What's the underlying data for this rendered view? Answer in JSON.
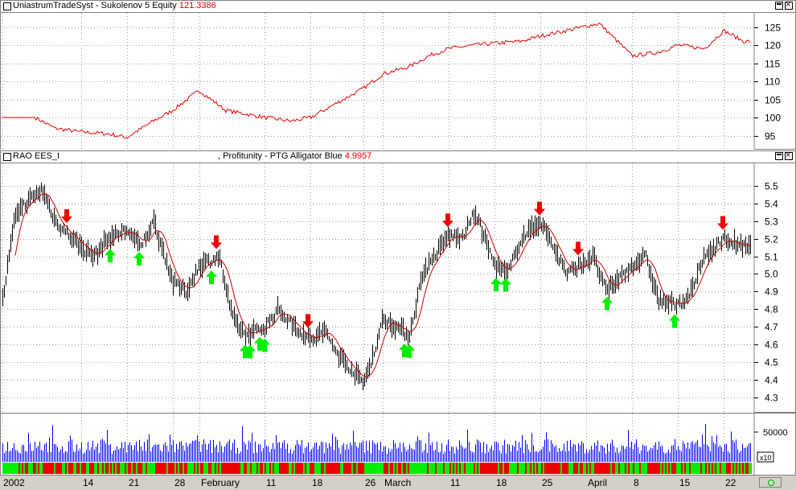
{
  "equity_panel": {
    "title": "UniastrumTradeSyst - Sukolenov 5 Equity",
    "value_label": "121.3386"
  },
  "price_panel": {
    "title_left": "RAO EES_I",
    "title_right": ", Profitunity - PTG Alligator Blue",
    "value_label": "4.9957"
  },
  "volume_panel": {
    "multiplier": "x10"
  },
  "colors": {
    "equity_line": "#e00000",
    "price_bars": "#000000",
    "alligator_line": "#cc0000",
    "buy_arrow": "#00ee00",
    "sell_arrow": "#ee0000",
    "volume_bars": "#0000ff",
    "up_strip": "#00ee00",
    "down_strip": "#ee0000"
  },
  "chart_data": [
    {
      "type": "line",
      "name": "equity",
      "yticks": [
        95,
        100,
        105,
        110,
        115,
        120,
        125
      ],
      "ylim": [
        92,
        128
      ],
      "x": [
        "2002-01-02",
        "2002-01-07",
        "2002-01-10",
        "2002-01-14",
        "2002-01-18",
        "2002-01-21",
        "2002-01-25",
        "2002-01-28",
        "2002-02-01",
        "2002-02-05",
        "2002-02-08",
        "2002-02-11",
        "2002-02-15",
        "2002-02-18",
        "2002-02-22",
        "2002-02-26",
        "2002-03-01",
        "2002-03-05",
        "2002-03-08",
        "2002-03-11",
        "2002-03-15",
        "2002-03-18",
        "2002-03-22",
        "2002-03-25",
        "2002-03-29",
        "2002-04-03",
        "2002-04-08",
        "2002-04-12",
        "2002-04-15",
        "2002-04-19",
        "2002-04-22",
        "2002-04-25"
      ],
      "values": [
        100,
        100,
        97,
        96,
        95.5,
        94.5,
        99,
        102,
        107.5,
        102,
        101,
        100,
        99,
        100,
        104,
        108,
        112,
        114,
        117,
        119,
        120,
        120.5,
        121,
        122.5,
        124,
        126,
        117,
        118,
        120,
        119,
        124,
        121
      ]
    },
    {
      "type": "line",
      "name": "RAO EES_I",
      "yticks": [
        4.3,
        4.4,
        4.5,
        4.6,
        4.7,
        4.8,
        4.9,
        5.0,
        5.1,
        5.2,
        5.3,
        5.4,
        5.5
      ],
      "ylim": [
        4.24,
        5.6
      ],
      "x": [
        "2002-01-02",
        "2002-01-04",
        "2002-01-08",
        "2002-01-10",
        "2002-01-14",
        "2002-01-16",
        "2002-01-18",
        "2002-01-21",
        "2002-01-23",
        "2002-01-25",
        "2002-01-28",
        "2002-01-30",
        "2002-02-01",
        "2002-02-04",
        "2002-02-06",
        "2002-02-08",
        "2002-02-11",
        "2002-02-13",
        "2002-02-15",
        "2002-02-18",
        "2002-02-20",
        "2002-02-22",
        "2002-02-26",
        "2002-02-28",
        "2002-03-01",
        "2002-03-05",
        "2002-03-07",
        "2002-03-11",
        "2002-03-13",
        "2002-03-15",
        "2002-03-18",
        "2002-03-20",
        "2002-03-22",
        "2002-03-25",
        "2002-03-27",
        "2002-03-29",
        "2002-04-02",
        "2002-04-04",
        "2002-04-08",
        "2002-04-10",
        "2002-04-12",
        "2002-04-15",
        "2002-04-17",
        "2002-04-19",
        "2002-04-22",
        "2002-04-25"
      ],
      "values": [
        4.85,
        5.35,
        5.48,
        5.3,
        5.15,
        5.1,
        5.2,
        5.25,
        5.15,
        5.3,
        4.95,
        4.9,
        5.05,
        5.1,
        4.75,
        4.65,
        4.7,
        4.8,
        4.72,
        4.62,
        4.68,
        4.55,
        4.38,
        4.6,
        4.75,
        4.65,
        5.0,
        5.22,
        5.2,
        5.35,
        5.05,
        5.0,
        5.2,
        5.3,
        5.15,
        5.0,
        5.1,
        4.9,
        5.05,
        5.1,
        4.85,
        4.82,
        4.9,
        5.1,
        5.2,
        5.15
      ]
    }
  ],
  "date_axis": [
    {
      "label": "2002",
      "date": "2002-01-02"
    },
    {
      "label": "14",
      "date": "2002-01-14"
    },
    {
      "label": "21",
      "date": "2002-01-21"
    },
    {
      "label": "28",
      "date": "2002-01-28"
    },
    {
      "label": "February",
      "date": "2002-02-01"
    },
    {
      "label": "11",
      "date": "2002-02-11"
    },
    {
      "label": "18",
      "date": "2002-02-18"
    },
    {
      "label": "26",
      "date": "2002-02-26"
    },
    {
      "label": "March",
      "date": "2002-03-01"
    },
    {
      "label": "11",
      "date": "2002-03-11"
    },
    {
      "label": "18",
      "date": "2002-03-18"
    },
    {
      "label": "25",
      "date": "2002-03-25"
    },
    {
      "label": "April",
      "date": "2002-04-01"
    },
    {
      "label": "8",
      "date": "2002-04-08"
    },
    {
      "label": "15",
      "date": "2002-04-15"
    },
    {
      "label": "22",
      "date": "2002-04-22"
    }
  ],
  "volume_axis": {
    "tick": "50000"
  }
}
